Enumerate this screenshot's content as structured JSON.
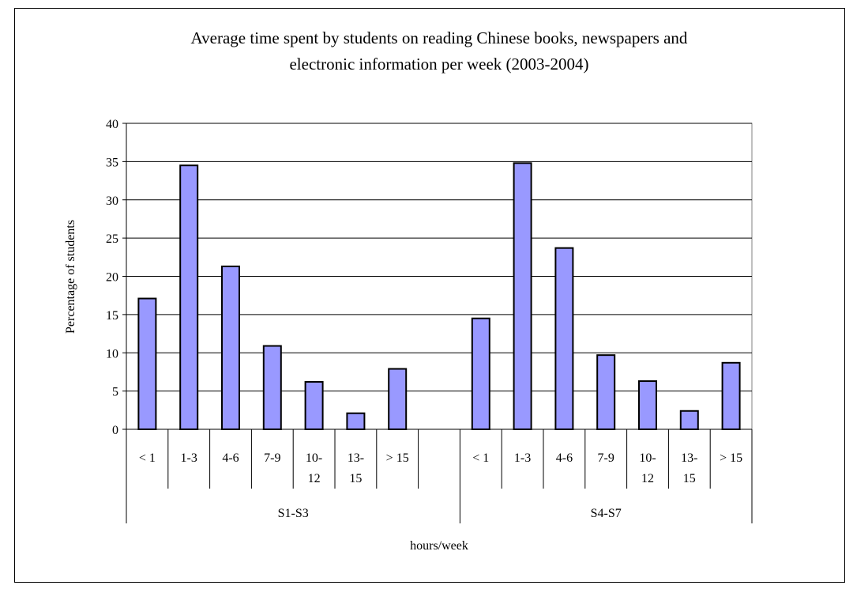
{
  "chart_data": {
    "type": "bar",
    "title_line1": "Average time spent by students on reading Chinese books, newspapers and",
    "title_line2": "electronic information per week (2003-2004)",
    "xlabel": "hours/week",
    "ylabel": "Percentage of students",
    "ylim": [
      0,
      40
    ],
    "yticks": [
      0,
      5,
      10,
      15,
      20,
      25,
      30,
      35,
      40
    ],
    "grid": true,
    "bar_color": "#9999ff",
    "groups": [
      {
        "name": "S1-S3",
        "categories": [
          "< 1",
          "1-3",
          "4-6",
          "7-9",
          "10-12",
          "13-15",
          "> 15"
        ],
        "values": [
          17.1,
          34.5,
          21.3,
          10.9,
          6.2,
          2.1,
          7.9
        ]
      },
      {
        "name": "S4-S7",
        "categories": [
          "< 1",
          "1-3",
          "4-6",
          "7-9",
          "10-12",
          "13-15",
          "> 15"
        ],
        "values": [
          14.5,
          34.8,
          23.7,
          9.7,
          6.3,
          2.4,
          8.7
        ]
      }
    ]
  }
}
